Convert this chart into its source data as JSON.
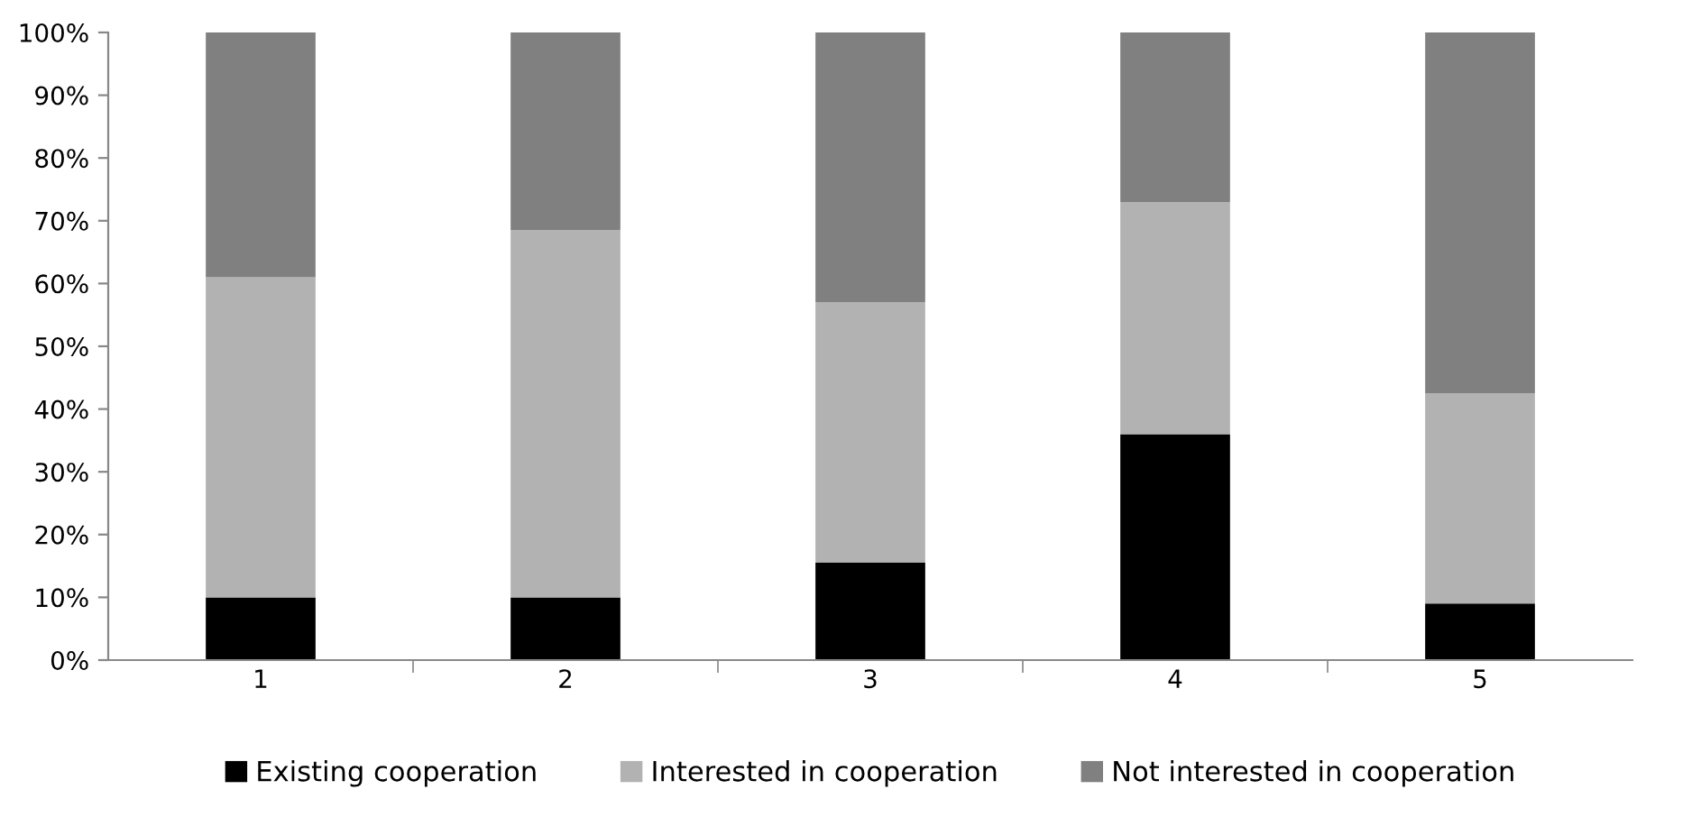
{
  "chart_data": {
    "type": "bar",
    "stacked": true,
    "categories": [
      "1",
      "2",
      "3",
      "4",
      "5"
    ],
    "series": [
      {
        "name": "Existing cooperation",
        "color": "#000000",
        "values": [
          10,
          10,
          15.5,
          36,
          9
        ]
      },
      {
        "name": "Interested in cooperation",
        "color": "#b2b2b2",
        "values": [
          51,
          58.5,
          41.5,
          37,
          33.5
        ]
      },
      {
        "name": "Not interested in cooperation",
        "color": "#808080",
        "values": [
          39,
          31.5,
          43,
          27,
          57.5
        ]
      }
    ],
    "ylim": [
      0,
      100
    ],
    "yticks": [
      {
        "value": 0,
        "label": "0%"
      },
      {
        "value": 10,
        "label": "10%"
      },
      {
        "value": 20,
        "label": "20%"
      },
      {
        "value": 30,
        "label": "30%"
      },
      {
        "value": 40,
        "label": "40%"
      },
      {
        "value": 50,
        "label": "50%"
      },
      {
        "value": 60,
        "label": "60%"
      },
      {
        "value": 70,
        "label": "70%"
      },
      {
        "value": 80,
        "label": "80%"
      },
      {
        "value": 90,
        "label": "90%"
      },
      {
        "value": 100,
        "label": "100%"
      }
    ],
    "grid": false,
    "legend": "bottom"
  }
}
